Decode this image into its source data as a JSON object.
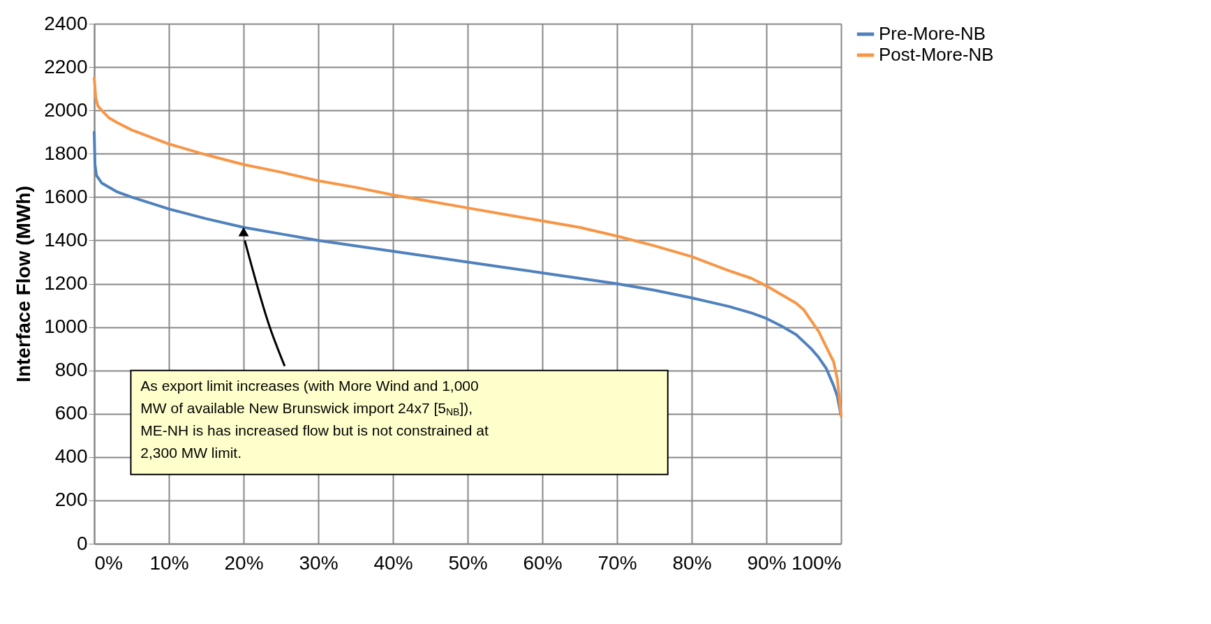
{
  "chart_data": {
    "type": "line",
    "ylabel": "Interface Flow (MWh)",
    "xlim": [
      0,
      100
    ],
    "ylim": [
      0,
      2400
    ],
    "xticks": [
      {
        "value": 0,
        "label": "0%"
      },
      {
        "value": 10,
        "label": "10%"
      },
      {
        "value": 20,
        "label": "20%"
      },
      {
        "value": 30,
        "label": "30%"
      },
      {
        "value": 40,
        "label": "40%"
      },
      {
        "value": 50,
        "label": "50%"
      },
      {
        "value": 60,
        "label": "60%"
      },
      {
        "value": 70,
        "label": "70%"
      },
      {
        "value": 80,
        "label": "80%"
      },
      {
        "value": 90,
        "label": "90%"
      },
      {
        "value": 100,
        "label": "100%"
      }
    ],
    "yticks": [
      0,
      200,
      400,
      600,
      800,
      1000,
      1200,
      1400,
      1600,
      1800,
      2000,
      2200,
      2400
    ],
    "grid": true,
    "legend": "right",
    "marker": "none",
    "line_style": "solid",
    "series": [
      {
        "name": "Pre-More-NB",
        "color": "#4f81bd",
        "x": [
          0,
          0.1,
          0.3,
          1,
          3,
          5,
          10,
          15,
          20,
          25,
          30,
          35,
          40,
          45,
          50,
          55,
          60,
          65,
          70,
          75,
          80,
          85,
          88,
          90,
          92,
          94,
          96,
          97,
          98,
          99,
          99.5,
          100
        ],
        "values": [
          1900,
          1750,
          1700,
          1665,
          1625,
          1600,
          1545,
          1500,
          1460,
          1430,
          1400,
          1375,
          1350,
          1325,
          1300,
          1275,
          1250,
          1225,
          1200,
          1170,
          1135,
          1095,
          1065,
          1040,
          1005,
          965,
          900,
          860,
          810,
          730,
          680,
          590
        ]
      },
      {
        "name": "Post-More-NB",
        "color": "#f79646",
        "x": [
          0,
          0.2,
          0.5,
          1,
          2,
          3,
          5,
          10,
          15,
          20,
          25,
          30,
          35,
          40,
          45,
          50,
          55,
          60,
          65,
          70,
          75,
          80,
          85,
          88,
          90,
          92,
          94,
          95,
          96,
          97,
          98,
          99,
          99.5,
          100
        ],
        "values": [
          2150,
          2060,
          2020,
          2000,
          1965,
          1945,
          1910,
          1845,
          1795,
          1750,
          1715,
          1675,
          1645,
          1610,
          1580,
          1550,
          1520,
          1490,
          1460,
          1420,
          1375,
          1325,
          1260,
          1225,
          1190,
          1150,
          1110,
          1080,
          1030,
          980,
          910,
          840,
          760,
          590
        ]
      }
    ],
    "annotations": [
      "As export limit increases (with More Wind and 1,000 MW of available New Brunswick import 24x7 [5$_{NB}$]), ME-NH is has increased flow but is not constrained at 2,300 MW limit."
    ]
  }
}
